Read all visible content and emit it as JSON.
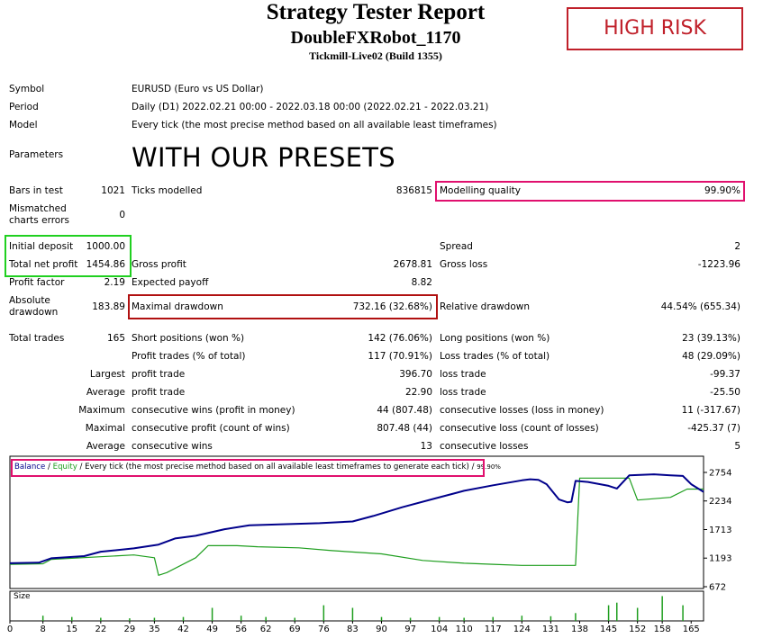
{
  "header": {
    "title": "Strategy Tester Report",
    "subtitle": "DoubleFXRobot_1170",
    "server": "Tickmill-Live02 (Build 1355)",
    "badge": "HIGH RISK",
    "presets": "WITH OUR PRESETS"
  },
  "info": {
    "symbol_label": "Symbol",
    "symbol_value": "EURUSD (Euro vs US Dollar)",
    "period_label": "Period",
    "period_value": "Daily (D1) 2022.02.21 00:00 - 2022.03.18 00:00 (2022.02.21 - 2022.03.21)",
    "model_label": "Model",
    "model_value": "Every tick (the most precise method based on all available least timeframes)",
    "parameters_label": "Parameters"
  },
  "stats": {
    "bars_label": "Bars in test",
    "bars_value": "1021",
    "ticks_label": "Ticks modelled",
    "ticks_value": "836815",
    "mq_label": "Modelling quality",
    "mq_value": "99.90%",
    "mismatch_label_1": "Mismatched",
    "mismatch_label_2": "charts errors",
    "mismatch_value": "0",
    "deposit_label": "Initial deposit",
    "deposit_value": "1000.00",
    "spread_label": "Spread",
    "spread_value": "2",
    "netprofit_label": "Total net profit",
    "netprofit_value": "1454.86",
    "grossprofit_label": "Gross profit",
    "grossprofit_value": "2678.81",
    "grossloss_label": "Gross loss",
    "grossloss_value": "-1223.96",
    "pf_label": "Profit factor",
    "pf_value": "2.19",
    "ep_label": "Expected payoff",
    "ep_value": "8.82",
    "absdd_label_1": "Absolute",
    "absdd_label_2": "drawdown",
    "absdd_value": "183.89",
    "maxdd_label": "Maximal drawdown",
    "maxdd_value": "732.16 (32.68%)",
    "reldd_label": "Relative drawdown",
    "reldd_value": "44.54% (655.34)",
    "trades_label": "Total trades",
    "trades_value": "165",
    "short_label": "Short positions (won %)",
    "short_value": "142 (76.06%)",
    "long_label": "Long positions (won %)",
    "long_value": "23 (39.13%)",
    "ptrades_label": "Profit trades (% of total)",
    "ptrades_value": "117 (70.91%)",
    "ltrades_label": "Loss trades (% of total)",
    "ltrades_value": "48 (29.09%)",
    "largest_label": "Largest",
    "lpt_label": "profit trade",
    "lpt_value": "396.70",
    "llt_label": "loss trade",
    "llt_value": "-99.37",
    "average_label": "Average",
    "apt_label": "profit trade",
    "apt_value": "22.90",
    "alt_label": "loss trade",
    "alt_value": "-25.50",
    "maximum_label": "Maximum",
    "mcw_label": "consecutive wins (profit in money)",
    "mcw_value": "44 (807.48)",
    "mcl_label": "consecutive losses (loss in money)",
    "mcl_value": "11 (-317.67)",
    "maximal_label": "Maximal",
    "mcp_label": "consecutive profit (count of wins)",
    "mcp_value": "807.48 (44)",
    "mclc_label": "consecutive loss (count of losses)",
    "mclc_value": "-425.37 (7)",
    "average2_label": "Average",
    "acw_label": "consecutive wins",
    "acw_value": "13",
    "acl_label": "consecutive losses",
    "acl_value": "5"
  },
  "chart_legend": {
    "balance": "Balance",
    "sep1": " / ",
    "equity": "Equity",
    "rest": " / Every tick (the most precise method based on all available least timeframes to generate each tick) / ",
    "quality": "99.90%",
    "size_label": "Size"
  },
  "colors": {
    "balance": "#00008b",
    "equity": "#1e9e1e",
    "high_risk": "#c0202a",
    "highlight_pink": "#e0106e",
    "highlight_green": "#20d020",
    "highlight_red": "#b01010"
  },
  "chart_data": {
    "type": "line",
    "x_ticks": [
      0,
      8,
      15,
      22,
      29,
      35,
      42,
      49,
      56,
      62,
      69,
      76,
      83,
      90,
      97,
      104,
      110,
      117,
      124,
      131,
      138,
      145,
      152,
      158,
      165
    ],
    "y_ticks": [
      2754,
      2234,
      1713,
      1193,
      672
    ],
    "ylim": [
      672,
      2754
    ],
    "xlim": [
      0,
      168
    ],
    "series": [
      {
        "name": "Balance",
        "x": [
          0,
          7,
          10,
          18,
          22,
          30,
          36,
          40,
          45,
          52,
          58,
          66,
          75,
          83,
          88,
          95,
          103,
          110,
          117,
          124,
          126,
          128,
          130,
          133,
          135,
          136,
          137,
          140,
          145,
          147,
          150,
          156,
          160,
          163,
          165,
          168
        ],
        "y": [
          1100,
          1110,
          1190,
          1230,
          1310,
          1370,
          1440,
          1550,
          1600,
          1720,
          1790,
          1810,
          1830,
          1860,
          1960,
          2120,
          2280,
          2420,
          2520,
          2610,
          2630,
          2620,
          2540,
          2260,
          2210,
          2220,
          2600,
          2580,
          2510,
          2460,
          2700,
          2720,
          2700,
          2690,
          2540,
          2400
        ]
      },
      {
        "name": "Equity",
        "x": [
          0,
          8,
          10,
          30,
          35,
          36,
          38,
          45,
          48,
          55,
          60,
          70,
          78,
          90,
          100,
          110,
          117,
          124,
          125,
          137,
          138,
          150,
          152,
          160,
          164,
          168
        ],
        "y": [
          1080,
          1090,
          1170,
          1250,
          1200,
          880,
          930,
          1200,
          1420,
          1420,
          1400,
          1380,
          1330,
          1270,
          1150,
          1100,
          1080,
          1060,
          1060,
          1060,
          2650,
          2650,
          2250,
          2300,
          2450,
          2450
        ]
      }
    ],
    "size_bars": {
      "x": [
        8,
        15,
        22,
        29,
        35,
        42,
        49,
        56,
        62,
        69,
        76,
        83,
        90,
        97,
        104,
        110,
        117,
        124,
        131,
        137,
        145,
        147,
        152,
        158,
        163
      ],
      "h": [
        0.2,
        0.15,
        0.12,
        0.1,
        0.12,
        0.15,
        0.5,
        0.2,
        0.15,
        0.12,
        0.6,
        0.5,
        0.15,
        0.12,
        0.15,
        0.12,
        0.15,
        0.2,
        0.18,
        0.3,
        0.6,
        0.7,
        0.5,
        0.95,
        0.6
      ]
    }
  }
}
